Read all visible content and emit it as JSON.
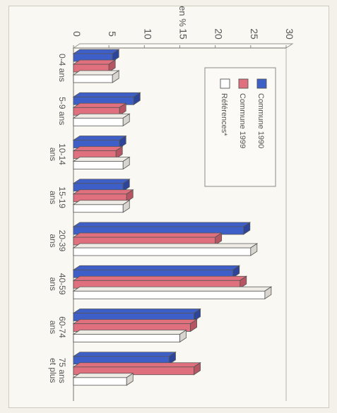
{
  "chart_data": {
    "type": "bar",
    "orientation": "horizontal",
    "rotated": "clockwise-90",
    "style": "3d",
    "title": "",
    "xlabel": "",
    "ylabel": "en %",
    "ylim": [
      0,
      30
    ],
    "yticks": [
      0,
      5,
      10,
      15,
      20,
      25,
      30
    ],
    "categories": [
      [
        "0-4 ans"
      ],
      [
        "5-9 ans"
      ],
      [
        "10-14",
        "ans"
      ],
      [
        "15-19",
        "ans"
      ],
      [
        "20-39",
        "ans"
      ],
      [
        "40-59",
        "ans"
      ],
      [
        "60-74",
        "ans"
      ],
      [
        "75 ans",
        "et plus"
      ]
    ],
    "series": [
      {
        "name": "Commune 1990",
        "color": "#3f5fc8",
        "values": [
          5.5,
          8.5,
          6.5,
          7,
          24,
          22.5,
          17,
          13.5
        ]
      },
      {
        "name": "Commune 1999",
        "color": "#e0707e",
        "values": [
          5,
          6.5,
          6,
          7.5,
          20,
          23.5,
          16.5,
          17
        ]
      },
      {
        "name": "Références*",
        "color": "#ffffff",
        "values": [
          5.5,
          7,
          7,
          7,
          25,
          27,
          15,
          7.5
        ]
      }
    ],
    "legend": "inside-top-right",
    "grid": false
  }
}
